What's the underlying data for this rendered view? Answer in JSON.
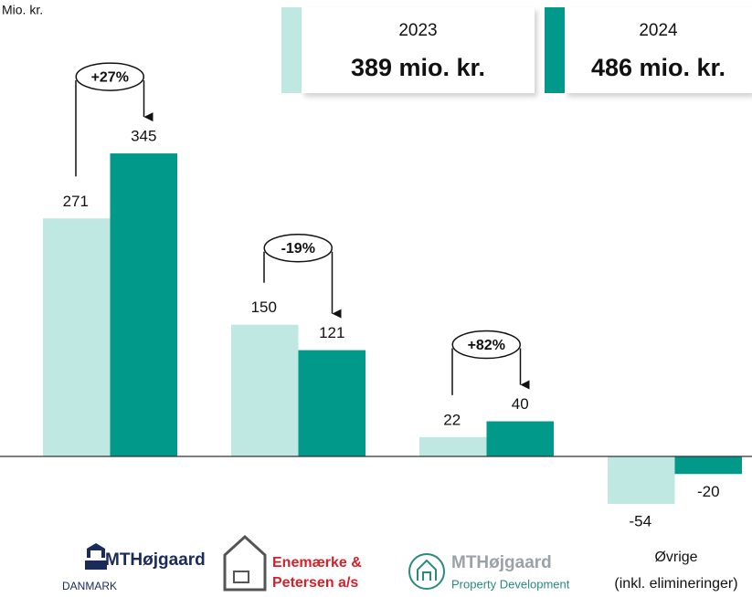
{
  "chart_data": {
    "type": "bar",
    "y_axis_label": "Mio. kr.",
    "categories": [
      [
        "MTHøjgaard",
        "DANMARK"
      ],
      [
        "Enemærke &",
        "Petersen a/s"
      ],
      [
        "MTHøjgaard",
        "Property Development"
      ],
      [
        "Øvrige",
        "(inkl. elimineringer)"
      ]
    ],
    "series": [
      {
        "name": "2023",
        "color": "#bfe8e2",
        "total_label": "389 mio. kr.",
        "values": [
          271,
          150,
          22,
          -54
        ]
      },
      {
        "name": "2024",
        "color": "#00998a",
        "total_label": "486 mio. kr.",
        "values": [
          345,
          121,
          40,
          -20
        ]
      }
    ],
    "changes": [
      {
        "value": 27,
        "label": "+27%"
      },
      {
        "value": -19,
        "label": "-19%"
      },
      {
        "value": 82,
        "label": "+82%"
      }
    ],
    "ylim": [
      -80,
      380
    ]
  }
}
